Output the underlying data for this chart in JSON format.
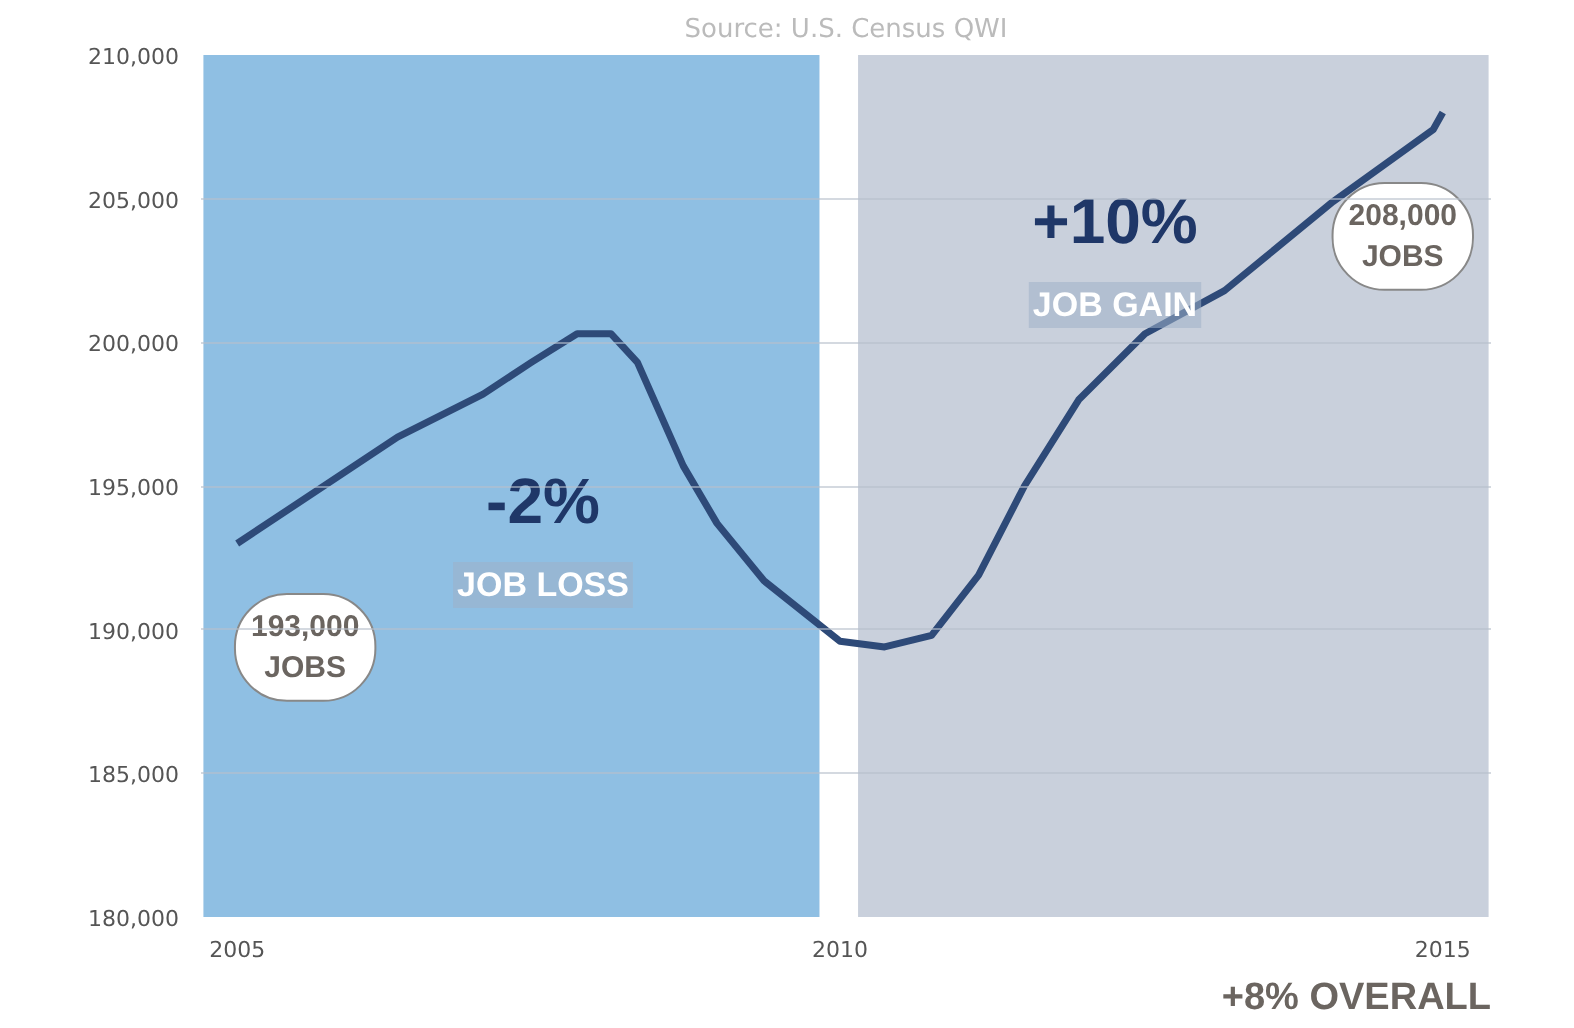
{
  "chart_data": {
    "type": "line",
    "x": [
      2005,
      2006.33,
      2007.04,
      2007.44,
      2007.82,
      2008.1,
      2008.32,
      2008.7,
      2008.98,
      2009.37,
      2010.0,
      2010.37,
      2010.76,
      2011.15,
      2011.53,
      2011.98,
      2012.53,
      2013.19,
      2014.09,
      2014.92,
      2015
    ],
    "series": [
      {
        "color": "#2e4a78",
        "values": [
          193000,
          196700,
          198200,
          199300,
          200300,
          200300,
          199300,
          195700,
          193700,
          191700,
          189600,
          189400,
          189800,
          191900,
          195000,
          198000,
          200300,
          201800,
          204900,
          207400,
          208000
        ]
      }
    ],
    "xlim": [
      2004.7,
      2015.4
    ],
    "ylim": [
      180000,
      210000
    ],
    "xticks": [
      2005,
      2010,
      2015
    ],
    "yticks": [
      {
        "value": 180000,
        "label": "180,000"
      },
      {
        "value": 185000,
        "label": "185,000"
      },
      {
        "value": 190000,
        "label": "190,000"
      },
      {
        "value": 195000,
        "label": "195,000"
      },
      {
        "value": 200000,
        "label": "200,000"
      },
      {
        "value": 205000,
        "label": "205,000"
      },
      {
        "value": 210000,
        "label": "210,000"
      }
    ],
    "bands": [
      {
        "axis": "x",
        "from": 2004.72,
        "to": 2009.83,
        "color": "#8fbfe3"
      },
      {
        "axis": "x",
        "from": 2010.15,
        "to": 2015.38,
        "color": "#c9d0dc"
      }
    ],
    "annotations": [
      "Source: U.S. Census QWI",
      {
        "text": "193,000\nJOBS",
        "x": 2005,
        "y": 193000
      },
      {
        "text": "208,000\nJOBS",
        "x": 2015,
        "y": 208000
      },
      "-2%",
      "JOB LOSS",
      "+10%",
      "JOB GAIN",
      "+8% OVERALL"
    ],
    "grid": "y",
    "marker": "none",
    "line_style": "solid"
  }
}
